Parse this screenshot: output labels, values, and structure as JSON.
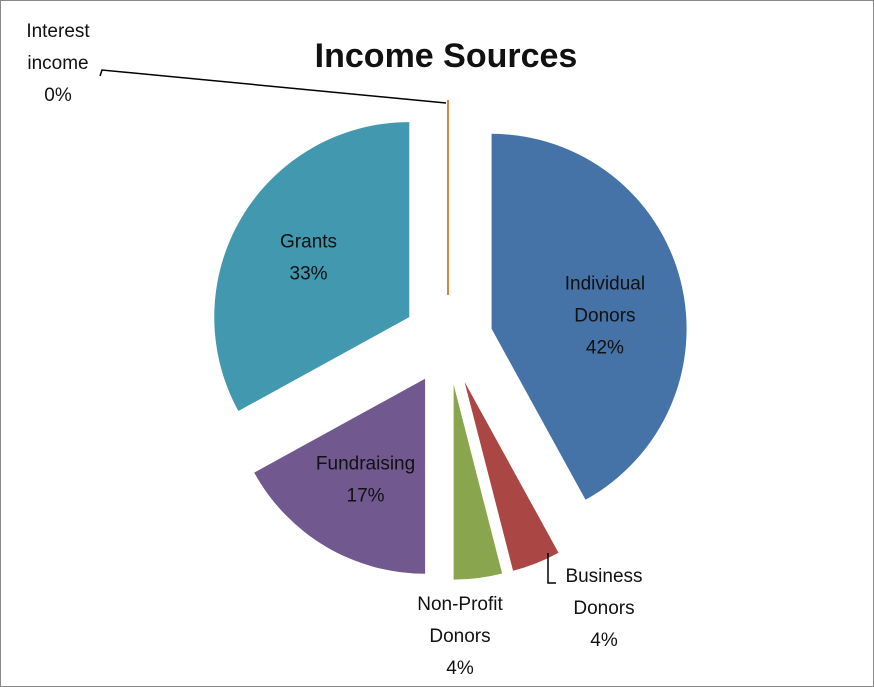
{
  "chart_data": {
    "type": "pie",
    "title": "Income Sources",
    "categories": [
      "Individual Donors",
      "Business Donors",
      "Non-Profit Donors",
      "Fundraising",
      "Grants",
      "Interest income"
    ],
    "values": [
      42,
      4,
      4,
      17,
      33,
      0
    ],
    "value_labels": [
      "42%",
      "4%",
      "4%",
      "17%",
      "33%",
      "0%"
    ],
    "colors": [
      "#4572a7",
      "#aa4643",
      "#89a54e",
      "#71588f",
      "#4198af",
      "#db843d"
    ]
  }
}
